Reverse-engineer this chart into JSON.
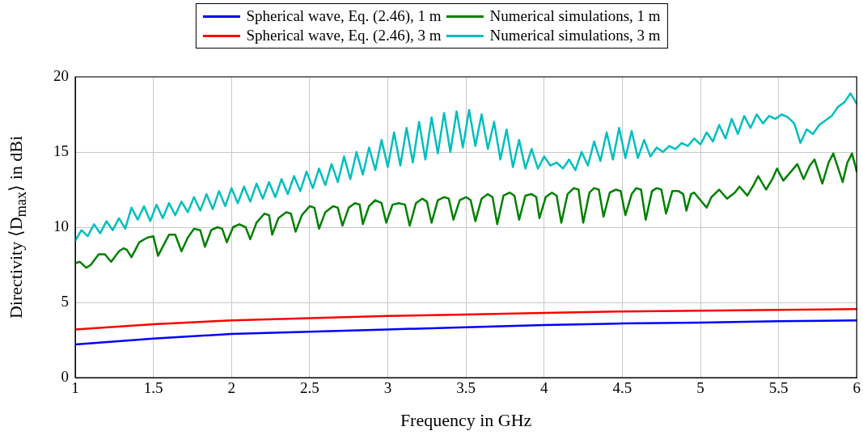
{
  "chart_data": {
    "type": "line",
    "xlabel": "Frequency in GHz",
    "ylabel": "Directivity ⟨D$_{max}$⟩ in dBi",
    "xlim": [
      1,
      6
    ],
    "xticks": [
      1,
      1.5,
      2,
      2.5,
      3,
      3.5,
      4,
      4.5,
      5,
      5.5,
      6
    ],
    "ylim": [
      0,
      20
    ],
    "yticks": [
      0,
      5,
      10,
      15,
      20
    ],
    "grid": true,
    "legend": "top",
    "marker": "none",
    "line_style": "solid",
    "series": [
      {
        "name": "Spherical wave, Eq. (2.46), 1 m",
        "color": "#0000ff",
        "x": [
          1,
          1.5,
          2,
          2.5,
          3,
          3.5,
          4,
          4.5,
          5,
          5.5,
          6
        ],
        "values": [
          2.2,
          2.6,
          2.9,
          3.05,
          3.2,
          3.35,
          3.5,
          3.6,
          3.65,
          3.75,
          3.8
        ]
      },
      {
        "name": "Numerical simulations, 1 m",
        "color": "#008000",
        "x": [
          1.0,
          1.03,
          1.07,
          1.1,
          1.15,
          1.19,
          1.23,
          1.28,
          1.31,
          1.33,
          1.36,
          1.41,
          1.46,
          1.5,
          1.53,
          1.56,
          1.6,
          1.64,
          1.68,
          1.72,
          1.76,
          1.8,
          1.83,
          1.87,
          1.91,
          1.94,
          1.97,
          2.01,
          2.05,
          2.09,
          2.12,
          2.16,
          2.21,
          2.24,
          2.26,
          2.3,
          2.35,
          2.38,
          2.41,
          2.45,
          2.5,
          2.53,
          2.56,
          2.6,
          2.65,
          2.68,
          2.71,
          2.75,
          2.79,
          2.82,
          2.84,
          2.88,
          2.92,
          2.96,
          2.99,
          3.03,
          3.07,
          3.11,
          3.14,
          3.18,
          3.22,
          3.25,
          3.28,
          3.32,
          3.36,
          3.39,
          3.42,
          3.46,
          3.5,
          3.53,
          3.56,
          3.6,
          3.64,
          3.67,
          3.7,
          3.74,
          3.78,
          3.81,
          3.84,
          3.88,
          3.92,
          3.95,
          3.97,
          4.01,
          4.05,
          4.08,
          4.11,
          4.15,
          4.19,
          4.22,
          4.25,
          4.29,
          4.32,
          4.35,
          4.38,
          4.42,
          4.46,
          4.49,
          4.52,
          4.56,
          4.59,
          4.62,
          4.65,
          4.69,
          4.72,
          4.75,
          4.78,
          4.82,
          4.86,
          4.89,
          4.91,
          4.94,
          4.96,
          5.0,
          5.04,
          5.07,
          5.12,
          5.17,
          5.22,
          5.25,
          5.3,
          5.34,
          5.37,
          5.42,
          5.46,
          5.49,
          5.53,
          5.58,
          5.62,
          5.66,
          5.7,
          5.73,
          5.78,
          5.82,
          5.85,
          5.91,
          5.94,
          5.97,
          6.0
        ],
        "values": [
          7.6,
          7.7,
          7.3,
          7.5,
          8.2,
          8.2,
          7.7,
          8.4,
          8.6,
          8.5,
          8.0,
          9.0,
          9.3,
          9.4,
          8.1,
          8.7,
          9.5,
          9.5,
          8.4,
          9.3,
          9.9,
          9.8,
          8.7,
          9.8,
          10.0,
          9.9,
          9.0,
          10.0,
          10.2,
          10.0,
          9.2,
          10.3,
          10.9,
          10.8,
          9.5,
          10.6,
          11.0,
          10.9,
          9.7,
          10.8,
          11.4,
          11.3,
          9.9,
          11.0,
          11.4,
          11.3,
          10.1,
          11.3,
          11.6,
          11.5,
          10.2,
          11.4,
          11.8,
          11.6,
          10.3,
          11.5,
          11.6,
          11.5,
          10.1,
          11.6,
          11.9,
          11.7,
          10.3,
          11.8,
          12.0,
          11.9,
          10.5,
          11.8,
          12.0,
          11.8,
          10.4,
          11.9,
          12.2,
          12.0,
          10.2,
          12.1,
          12.3,
          12.1,
          10.5,
          12.1,
          12.2,
          12.0,
          10.6,
          12.0,
          12.3,
          12.1,
          10.3,
          12.2,
          12.6,
          12.5,
          10.3,
          12.3,
          12.6,
          12.5,
          10.7,
          12.3,
          12.5,
          12.4,
          10.8,
          12.2,
          12.6,
          12.5,
          10.5,
          12.4,
          12.6,
          12.5,
          10.9,
          12.4,
          12.4,
          12.2,
          11.1,
          12.2,
          12.3,
          11.8,
          11.3,
          12.0,
          12.5,
          11.9,
          12.3,
          12.7,
          12.1,
          12.8,
          13.4,
          12.5,
          13.2,
          13.9,
          13.1,
          13.7,
          14.2,
          13.2,
          14.1,
          14.5,
          12.9,
          14.3,
          14.9,
          13.0,
          14.3,
          14.9,
          13.7
        ]
      },
      {
        "name": "Spherical wave, Eq. (2.46), 3 m",
        "color": "#ff0000",
        "x": [
          1,
          1.5,
          2,
          2.5,
          3,
          3.5,
          4,
          4.5,
          5,
          5.5,
          6
        ],
        "values": [
          3.2,
          3.55,
          3.8,
          3.95,
          4.1,
          4.2,
          4.3,
          4.4,
          4.45,
          4.5,
          4.55
        ]
      },
      {
        "name": "Numerical simulations, 3 m",
        "color": "#00bfbf",
        "x": [
          1.0,
          1.04,
          1.08,
          1.12,
          1.16,
          1.2,
          1.24,
          1.28,
          1.32,
          1.36,
          1.4,
          1.44,
          1.48,
          1.52,
          1.56,
          1.6,
          1.64,
          1.68,
          1.72,
          1.76,
          1.8,
          1.84,
          1.88,
          1.92,
          1.96,
          2.0,
          2.04,
          2.08,
          2.12,
          2.16,
          2.2,
          2.24,
          2.28,
          2.32,
          2.36,
          2.4,
          2.44,
          2.48,
          2.52,
          2.56,
          2.6,
          2.64,
          2.68,
          2.72,
          2.76,
          2.8,
          2.84,
          2.88,
          2.92,
          2.96,
          3.0,
          3.04,
          3.08,
          3.12,
          3.16,
          3.2,
          3.24,
          3.28,
          3.32,
          3.36,
          3.4,
          3.44,
          3.48,
          3.52,
          3.56,
          3.6,
          3.64,
          3.68,
          3.72,
          3.76,
          3.8,
          3.84,
          3.88,
          3.92,
          3.96,
          4.0,
          4.04,
          4.08,
          4.12,
          4.16,
          4.2,
          4.24,
          4.28,
          4.32,
          4.36,
          4.4,
          4.44,
          4.48,
          4.52,
          4.56,
          4.6,
          4.64,
          4.68,
          4.72,
          4.76,
          4.8,
          4.84,
          4.88,
          4.92,
          4.96,
          5.0,
          5.04,
          5.08,
          5.12,
          5.16,
          5.2,
          5.24,
          5.28,
          5.32,
          5.36,
          5.4,
          5.44,
          5.48,
          5.52,
          5.56,
          5.6,
          5.64,
          5.68,
          5.72,
          5.76,
          5.8,
          5.84,
          5.88,
          5.92,
          5.96,
          6.0
        ],
        "values": [
          9.1,
          9.8,
          9.4,
          10.2,
          9.6,
          10.4,
          9.8,
          10.6,
          9.9,
          11.3,
          10.5,
          11.4,
          10.4,
          11.5,
          10.6,
          11.6,
          10.8,
          11.7,
          11.0,
          12.0,
          11.1,
          12.2,
          11.2,
          12.4,
          11.4,
          12.6,
          11.6,
          12.7,
          11.7,
          12.9,
          11.9,
          13.0,
          12.0,
          13.2,
          12.2,
          13.4,
          12.4,
          13.7,
          12.6,
          13.9,
          12.8,
          14.2,
          13.0,
          14.7,
          13.2,
          15.0,
          13.5,
          15.3,
          13.8,
          15.8,
          14.0,
          16.3,
          14.1,
          16.6,
          14.3,
          17.0,
          14.5,
          17.3,
          14.9,
          17.6,
          15.0,
          17.7,
          15.3,
          17.8,
          15.4,
          17.5,
          15.2,
          17.0,
          14.5,
          16.5,
          14.0,
          15.8,
          13.9,
          15.2,
          13.9,
          14.7,
          14.1,
          14.3,
          13.9,
          14.5,
          13.8,
          15.0,
          14.1,
          15.7,
          14.4,
          16.3,
          14.5,
          16.6,
          14.6,
          16.4,
          14.6,
          15.8,
          14.7,
          15.3,
          15.0,
          15.4,
          15.2,
          15.6,
          15.4,
          15.9,
          15.5,
          16.3,
          15.7,
          16.8,
          15.9,
          17.2,
          16.2,
          17.4,
          16.6,
          17.5,
          16.9,
          17.4,
          17.2,
          17.5,
          17.3,
          16.9,
          15.6,
          16.5,
          16.2,
          16.8,
          17.1,
          17.4,
          18.0,
          18.3,
          18.9,
          18.2
        ]
      }
    ]
  }
}
